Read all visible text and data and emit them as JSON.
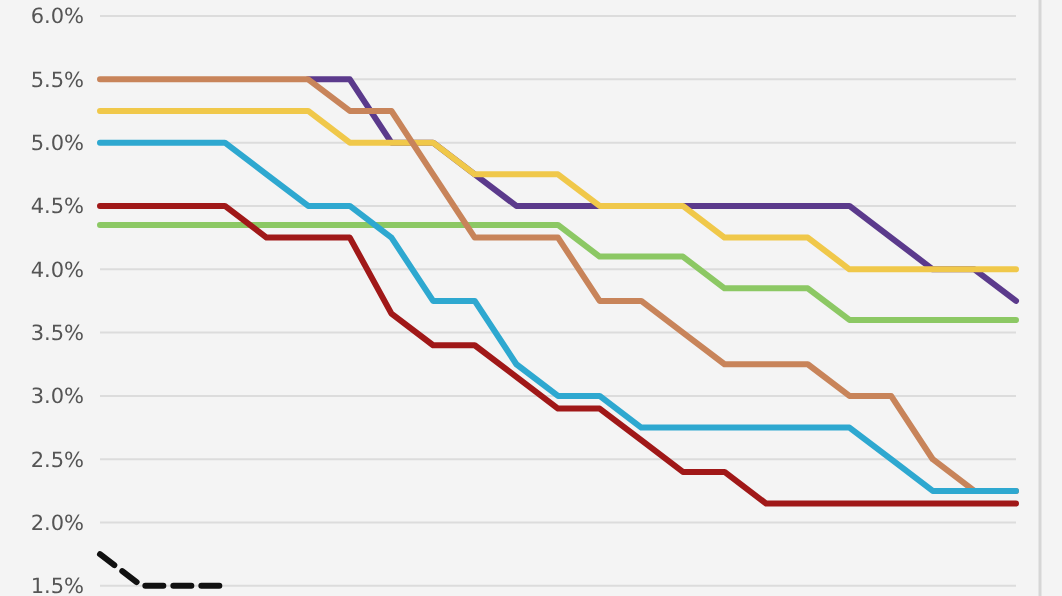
{
  "chart_data": {
    "type": "line",
    "categories": [
      null,
      null,
      null,
      null,
      null,
      null,
      null,
      null,
      null,
      null,
      null,
      null,
      null,
      null,
      null,
      null,
      null,
      null,
      null,
      null,
      null,
      null,
      null
    ],
    "series": [
      {
        "color": "#5b3a8c",
        "values": [
          null,
          null,
          null,
          null,
          null,
          5.5,
          5.5,
          5.0,
          5.0,
          4.75,
          4.5,
          4.5,
          4.5,
          4.5,
          4.5,
          4.5,
          4.5,
          4.5,
          4.5,
          4.25,
          4.0,
          4.0,
          3.75
        ]
      },
      {
        "color": "#f0c84a",
        "values": [
          5.25,
          5.25,
          5.25,
          5.25,
          5.25,
          5.25,
          5.0,
          5.0,
          5.0,
          4.75,
          4.75,
          4.75,
          4.5,
          4.5,
          4.5,
          4.25,
          4.25,
          4.25,
          4.0,
          4.0,
          4.0,
          4.0,
          4.0
        ]
      },
      {
        "color": "#8cc864",
        "values": [
          4.35,
          4.35,
          4.35,
          4.35,
          4.35,
          4.35,
          4.35,
          4.35,
          4.35,
          4.35,
          4.35,
          4.35,
          4.1,
          4.1,
          4.1,
          3.85,
          3.85,
          3.85,
          3.6,
          3.6,
          3.6,
          3.6,
          3.6
        ]
      },
      {
        "color": "#c8845a",
        "values": [
          5.5,
          5.5,
          5.5,
          5.5,
          5.5,
          5.5,
          5.25,
          5.25,
          4.75,
          4.25,
          4.25,
          4.25,
          3.75,
          3.75,
          3.5,
          3.25,
          3.25,
          3.25,
          3.0,
          3.0,
          2.5,
          2.25,
          2.25
        ]
      },
      {
        "color": "#2ea8d0",
        "values": [
          5.0,
          5.0,
          5.0,
          5.0,
          4.75,
          4.5,
          4.5,
          4.25,
          3.75,
          3.75,
          3.25,
          3.0,
          3.0,
          2.75,
          2.75,
          2.75,
          2.75,
          2.75,
          2.75,
          2.5,
          2.25,
          2.25,
          2.25
        ]
      },
      {
        "color": "#a01818",
        "values": [
          4.5,
          4.5,
          4.5,
          4.5,
          4.25,
          4.25,
          4.25,
          3.65,
          3.4,
          3.4,
          3.15,
          2.9,
          2.9,
          2.65,
          2.4,
          2.4,
          2.15,
          2.15,
          2.15,
          2.15,
          2.15,
          2.15,
          2.15
        ]
      },
      {
        "color": "#111111",
        "line_style": "dashed",
        "values": [
          1.75,
          1.5,
          1.5,
          1.5,
          null,
          null,
          null,
          null,
          null,
          null,
          null,
          null,
          null,
          null,
          null,
          null,
          null,
          null,
          null,
          null,
          null,
          null,
          null
        ]
      }
    ],
    "ylim": [
      1.42,
      6.0
    ],
    "yticks": [
      {
        "value": 1.5,
        "label": "1.5%"
      },
      {
        "value": 2.0,
        "label": "2.0%"
      },
      {
        "value": 2.5,
        "label": "2.5%"
      },
      {
        "value": 3.0,
        "label": "3.0%"
      },
      {
        "value": 3.5,
        "label": "3.5%"
      },
      {
        "value": 4.0,
        "label": "4.0%"
      },
      {
        "value": 4.5,
        "label": "4.5%"
      },
      {
        "value": 5.0,
        "label": "5.0%"
      },
      {
        "value": 5.5,
        "label": "5.5%"
      },
      {
        "value": 6.0,
        "label": "6.0%"
      }
    ],
    "grid": "y",
    "tick_labels": "y",
    "marker": "none",
    "line_style": "solid"
  }
}
